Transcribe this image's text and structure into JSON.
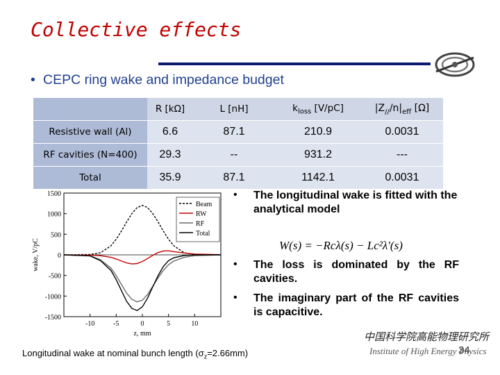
{
  "title": "Collective effects",
  "main_bullet": "CEPC ring wake and impedance budget",
  "table": {
    "headers": [
      "R [kΩ]",
      "L [nH]",
      "k_loss [V/pC]",
      "|Z///n|eff [Ω]"
    ],
    "header_parts": {
      "r": "R [kΩ]",
      "l": "L [nH]",
      "k": "k",
      "k_sub": "loss",
      "k_unit": " [V/pC]",
      "z_pre": "|Z",
      "z_sub": "//",
      "z_mid": "/n|",
      "z_sub2": "eff",
      "z_unit": " [Ω]"
    },
    "rows": [
      {
        "label": "Resistive wall (Al)",
        "values": [
          "6.6",
          "87.1",
          "210.9",
          "0.0031"
        ]
      },
      {
        "label": "RF cavities (N=400)",
        "values": [
          "29.3",
          "--",
          "931.2",
          "---"
        ]
      },
      {
        "label": "Total",
        "values": [
          "35.9",
          "87.1",
          "1142.1",
          "0.0031"
        ]
      }
    ]
  },
  "bullets": [
    "The longitudinal wake is fitted with the analytical model",
    "The loss is dominated by the RF cavities.",
    "The imaginary part of the RF cavities is capacitive."
  ],
  "formula": "W(s) = −Rcλ(s) − Lc²λ′(s)",
  "caption": {
    "pre": "Longitudinal wake at nominal bunch length (σ",
    "sub": "z",
    "post": "=2.66mm)"
  },
  "page_number": "34",
  "institute": {
    "chinese": "中国科学院高能物理研究所",
    "english": "Institute of High Energy Physics"
  },
  "chart_data": {
    "type": "line",
    "xlabel": "z, mm",
    "ylabel": "wake, V/pC",
    "xlim": [
      -15,
      15
    ],
    "ylim": [
      -1500,
      1500
    ],
    "x_ticks": [
      "-10",
      "-5",
      "0",
      "5",
      "10"
    ],
    "y_ticks": [
      "1500",
      "1000",
      "500",
      "0",
      "-500",
      "-1000",
      "-1500"
    ],
    "legend_position": "top-right",
    "series": [
      {
        "name": "Beam",
        "color": "#000000",
        "dash": "3,2",
        "x": [
          -15,
          -10,
          -8,
          -6,
          -5,
          -4,
          -3,
          -2,
          -1,
          0,
          1,
          2,
          3,
          4,
          5,
          6,
          8,
          10,
          15
        ],
        "y": [
          0,
          10,
          50,
          220,
          380,
          580,
          800,
          1000,
          1150,
          1200,
          1150,
          1000,
          800,
          580,
          380,
          220,
          50,
          10,
          0
        ]
      },
      {
        "name": "RW",
        "color": "#c00000",
        "dash": "",
        "x": [
          -15,
          -10,
          -8,
          -6,
          -5,
          -4,
          -3,
          -2,
          -1,
          0,
          1,
          2,
          3,
          4,
          5,
          6,
          8,
          10,
          15
        ],
        "y": [
          0,
          -5,
          -20,
          -60,
          -100,
          -150,
          -195,
          -220,
          -210,
          -160,
          -90,
          -10,
          55,
          95,
          100,
          80,
          45,
          20,
          5
        ]
      },
      {
        "name": "RF",
        "color": "#6a6a6a",
        "dash": "",
        "x": [
          -15,
          -10,
          -8,
          -6,
          -5,
          -4,
          -3,
          -2,
          -1,
          0,
          1,
          2,
          3,
          4,
          5,
          6,
          8,
          10,
          15
        ],
        "y": [
          0,
          -20,
          -120,
          -320,
          -500,
          -720,
          -930,
          -1080,
          -1140,
          -1100,
          -960,
          -760,
          -560,
          -380,
          -240,
          -150,
          -60,
          -20,
          0
        ]
      },
      {
        "name": "Total",
        "color": "#000000",
        "dash": "",
        "x": [
          -15,
          -10,
          -8,
          -6,
          -5,
          -4,
          -3,
          -2,
          -1,
          0,
          1,
          2,
          3,
          4,
          5,
          6,
          8,
          10,
          15
        ],
        "y": [
          0,
          -25,
          -140,
          -380,
          -600,
          -870,
          -1130,
          -1300,
          -1350,
          -1260,
          -1050,
          -770,
          -505,
          -285,
          -140,
          -70,
          -15,
          0,
          0
        ]
      }
    ]
  }
}
